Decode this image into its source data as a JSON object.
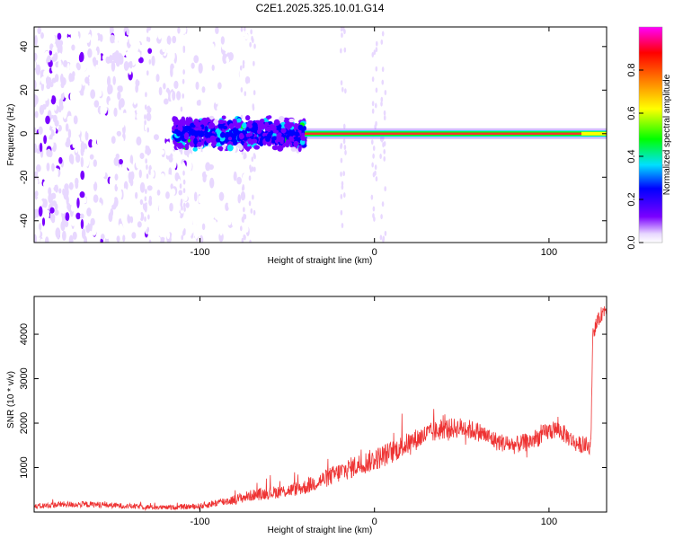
{
  "title": "C2E1.2025.325.10.01.G14",
  "chart_data": [
    {
      "type": "heatmap",
      "xlabel": "Height of straight line (km)",
      "ylabel": "Frequency (Hz)",
      "xlim": [
        -195,
        133
      ],
      "ylim": [
        -50,
        49
      ],
      "xticks": [
        -100,
        0,
        100
      ],
      "xtick_labels": [
        "-100",
        "0",
        "100"
      ],
      "yticks": [
        -40,
        -20,
        0,
        20,
        40
      ],
      "ytick_labels": [
        "-40",
        "-20",
        "0",
        "20",
        "40"
      ],
      "signal_line": {
        "frequency_hz": 0,
        "x_from": -40,
        "x_to": 133
      },
      "core_band": {
        "x_from": -115,
        "x_to": -40,
        "freq_halfwidth_hz": 8
      },
      "noise_region": {
        "x_from": -195,
        "x_to": -110
      },
      "grid": false,
      "colorbar": {
        "label": "Normalized spectral amplitude",
        "range": [
          0,
          1
        ],
        "ticks": [
          0.0,
          0.2,
          0.4,
          0.6,
          0.8
        ],
        "tick_labels": [
          "0.0",
          "0.2",
          "0.4",
          "0.6",
          "0.8"
        ],
        "colors": [
          "#ffffff",
          "#e8d8ff",
          "#7a00ff",
          "#0000ff",
          "#00e0ff",
          "#00ff00",
          "#ffff00",
          "#ff8000",
          "#ff0000",
          "#ff00ff"
        ]
      }
    },
    {
      "type": "line",
      "xlabel": "Height of straight line (km)",
      "ylabel": "SNR (10 * v/v)",
      "xlim": [
        -195,
        133
      ],
      "ylim": [
        0,
        4850
      ],
      "xticks": [
        -100,
        0,
        100
      ],
      "xtick_labels": [
        "-100",
        "0",
        "100"
      ],
      "yticks": [
        1000,
        2000,
        3000,
        4000
      ],
      "ytick_labels": [
        "1000",
        "2000",
        "3000",
        "4000"
      ],
      "grid": false,
      "series": [
        {
          "name": "SNR",
          "color": "#ee3333",
          "x": [
            -195,
            -180,
            -160,
            -140,
            -120,
            -100,
            -90,
            -80,
            -70,
            -60,
            -50,
            -40,
            -30,
            -20,
            -10,
            0,
            10,
            20,
            30,
            40,
            50,
            60,
            70,
            80,
            90,
            100,
            105,
            110,
            115,
            120,
            124,
            125,
            127,
            130,
            133
          ],
          "y": [
            120,
            170,
            170,
            130,
            100,
            130,
            210,
            280,
            380,
            430,
            480,
            560,
            720,
            890,
            1050,
            1180,
            1350,
            1560,
            1750,
            1870,
            1900,
            1800,
            1590,
            1500,
            1600,
            1820,
            1860,
            1720,
            1550,
            1490,
            1480,
            4030,
            4200,
            4450,
            4620
          ],
          "noise": [
            60,
            70,
            70,
            60,
            50,
            70,
            90,
            110,
            130,
            140,
            150,
            170,
            200,
            230,
            250,
            260,
            260,
            250,
            240,
            230,
            230,
            220,
            210,
            200,
            210,
            210,
            210,
            200,
            190,
            180,
            180,
            170,
            170,
            170,
            170
          ]
        }
      ]
    }
  ]
}
